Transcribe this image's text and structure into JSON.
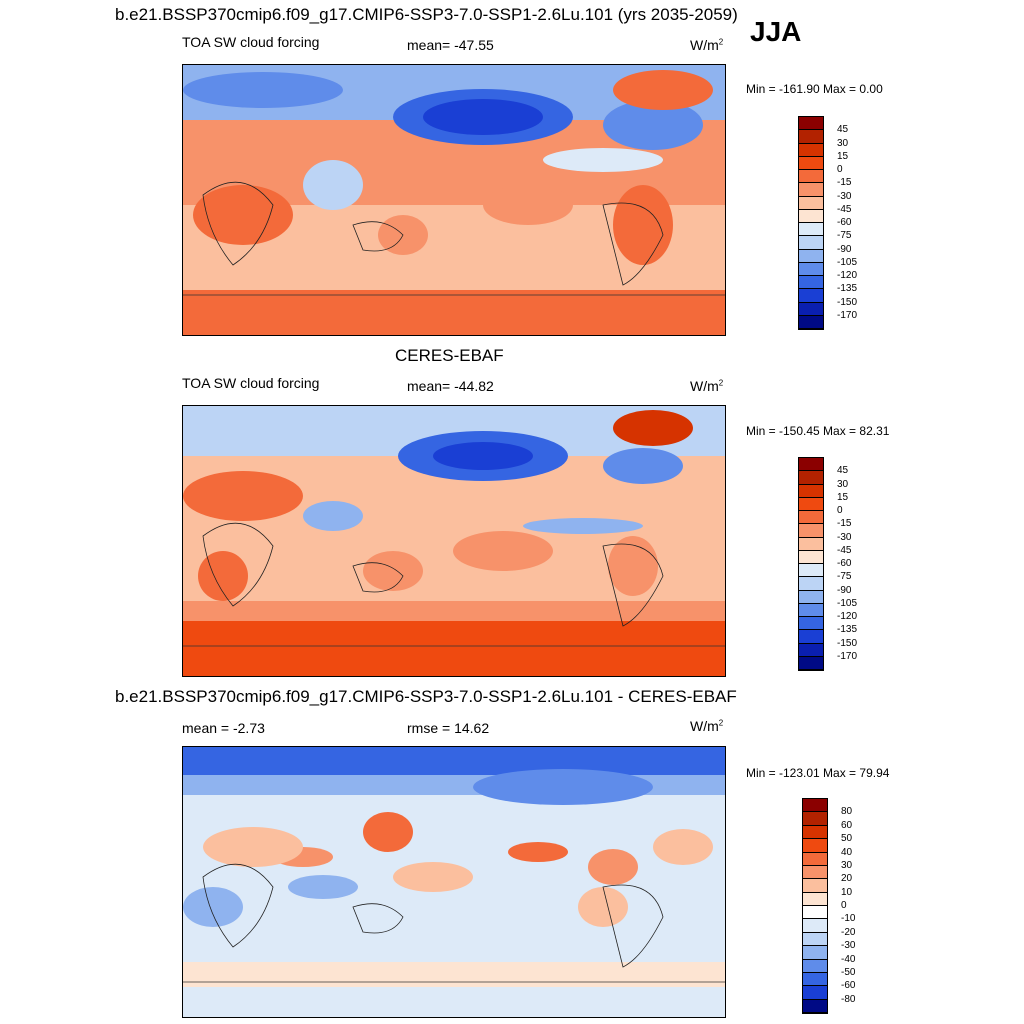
{
  "header": {
    "title": "b.e21.BSSP370cmip6.f09_g17.CMIP6-SSP3-7.0-SSP1-2.6Lu.101 (yrs 2035-2059)",
    "season": "JJA"
  },
  "panels": [
    {
      "variable": "TOA SW cloud forcing",
      "stat_left": "",
      "stat_mid": "mean= -47.55",
      "unit": "W/m",
      "unit_sup": "2",
      "minmax": "Min = -161.90 Max =   0.00",
      "colorbar_labels": [
        "45",
        "30",
        "15",
        "0",
        "-15",
        "-30",
        "-45",
        "-60",
        "-75",
        "-90",
        "-105",
        "-120",
        "-135",
        "-150",
        "-170"
      ],
      "colorbar_colors": [
        "#8b0000",
        "#b22200",
        "#d63300",
        "#ef4a10",
        "#f36a3a",
        "#f7926a",
        "#fbbf9e",
        "#fde4d2",
        "#ddeaf8",
        "#bcd4f5",
        "#8fb3ef",
        "#5f8cea",
        "#3565e2",
        "#1a3fd4",
        "#0a1fb0",
        "#000a85"
      ]
    },
    {
      "heading": "CERES-EBAF",
      "variable": "TOA SW cloud forcing",
      "stat_mid": "mean= -44.82",
      "unit": "W/m",
      "unit_sup": "2",
      "minmax": "Min = -150.45 Max =  82.31",
      "colorbar_labels": [
        "45",
        "30",
        "15",
        "0",
        "-15",
        "-30",
        "-45",
        "-60",
        "-75",
        "-90",
        "-105",
        "-120",
        "-135",
        "-150",
        "-170"
      ],
      "colorbar_colors": [
        "#8b0000",
        "#b22200",
        "#d63300",
        "#ef4a10",
        "#f36a3a",
        "#f7926a",
        "#fbbf9e",
        "#fde4d2",
        "#ddeaf8",
        "#bcd4f5",
        "#8fb3ef",
        "#5f8cea",
        "#3565e2",
        "#1a3fd4",
        "#0a1fb0",
        "#000a85"
      ]
    },
    {
      "heading": "b.e21.BSSP370cmip6.f09_g17.CMIP6-SSP3-7.0-SSP1-2.6Lu.101 - CERES-EBAF",
      "stat_left": "mean =  -2.73",
      "stat_mid": "rmse =  14.62",
      "unit": "W/m",
      "unit_sup": "2",
      "minmax": "Min = -123.01 Max =  79.94",
      "colorbar_labels": [
        "80",
        "60",
        "50",
        "40",
        "30",
        "20",
        "10",
        "0",
        "-10",
        "-20",
        "-30",
        "-40",
        "-50",
        "-60",
        "-80"
      ],
      "colorbar_colors": [
        "#8b0000",
        "#b22200",
        "#d63300",
        "#ef4a10",
        "#f36a3a",
        "#f7926a",
        "#fbbf9e",
        "#fde4d2",
        "#ffffff",
        "#ddeaf8",
        "#bcd4f5",
        "#8fb3ef",
        "#5f8cea",
        "#3565e2",
        "#1a3fd4",
        "#000a85"
      ]
    }
  ]
}
